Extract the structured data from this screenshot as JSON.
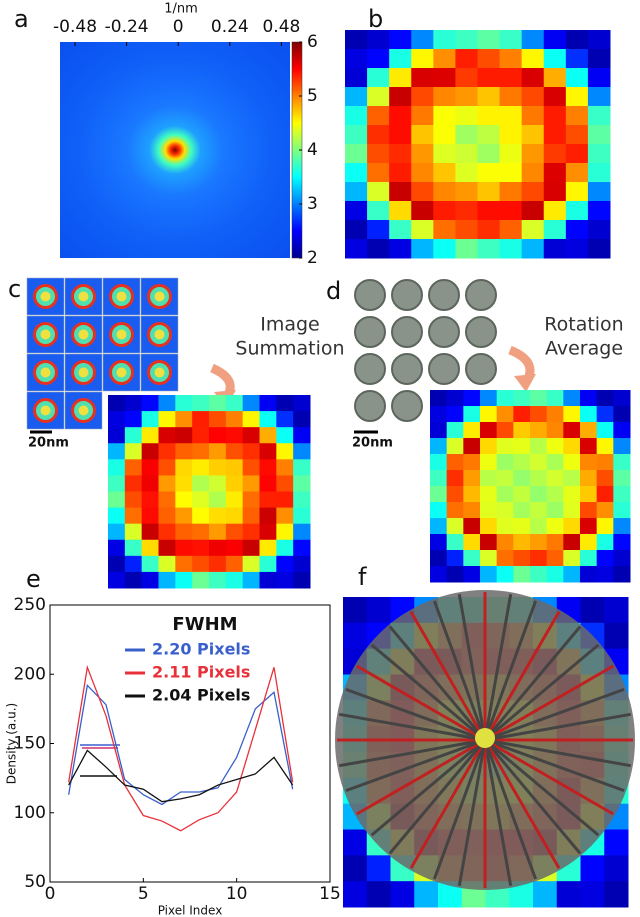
{
  "panel_labels": [
    "a",
    "b",
    "c",
    "d",
    "e",
    "f"
  ],
  "panel_a": {
    "axis_label": "1/nm",
    "xlim": [
      -0.55,
      0.52
    ],
    "xticks": [
      -0.48,
      -0.24,
      0,
      0.24,
      0.48
    ],
    "colorbar_lim": [
      2,
      6
    ],
    "colorbar_ticks": [
      2,
      3,
      4,
      5,
      6
    ]
  },
  "annotations": {
    "c": [
      "Image",
      "Summation"
    ],
    "d": [
      "Rotation",
      "Average"
    ],
    "scale_bar": "20nm"
  },
  "chart_data": {
    "type": "line",
    "xlabel": "Pixel Index",
    "ylabel": "Density (a.u.)",
    "legend_title": "FWHM",
    "x": [
      1,
      2,
      3,
      4,
      5,
      6,
      7,
      8,
      9,
      10,
      11,
      12,
      13
    ],
    "series": [
      {
        "name": "2.20 Pixels",
        "color": "#3a5fcd",
        "values": [
          113,
          192,
          178,
          124,
          113,
          106,
          115,
          115,
          118,
          140,
          175,
          187,
          117
        ]
      },
      {
        "name": "2.11 Pixels",
        "color": "#e8303a",
        "values": [
          122,
          205,
          170,
          120,
          98,
          94,
          87,
          95,
          100,
          115,
          160,
          205,
          122
        ]
      },
      {
        "name": "2.04 Pixels",
        "color": "#111111",
        "values": [
          120,
          145,
          133,
          120,
          117,
          108,
          110,
          113,
          120,
          124,
          128,
          140,
          120
        ]
      }
    ],
    "xlim": [
      0,
      15
    ],
    "xticks": [
      0,
      5,
      10,
      15
    ],
    "ylim": [
      50,
      250
    ],
    "yticks": [
      50,
      100,
      150,
      200,
      250
    ],
    "grid": false
  }
}
